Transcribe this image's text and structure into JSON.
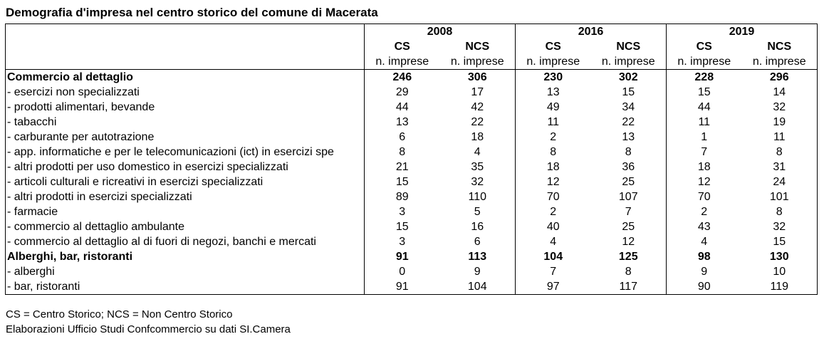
{
  "title": "Demografia d'impresa nel centro storico del comune di Macerata",
  "table": {
    "years": [
      "2008",
      "2016",
      "2019"
    ],
    "groups": [
      "CS",
      "NCS",
      "CS",
      "NCS",
      "CS",
      "NCS"
    ],
    "units": [
      "n. imprese",
      "n. imprese",
      "n. imprese",
      "n. imprese",
      "n. imprese",
      "n. imprese"
    ],
    "rows": [
      {
        "label": "Commercio al dettaglio",
        "bold": true,
        "values": [
          "246",
          "306",
          "230",
          "302",
          "228",
          "296"
        ]
      },
      {
        "label": "- esercizi non specializzati",
        "values": [
          "29",
          "17",
          "13",
          "15",
          "15",
          "14"
        ]
      },
      {
        "label": "- prodotti alimentari, bevande",
        "values": [
          "44",
          "42",
          "49",
          "34",
          "44",
          "32"
        ]
      },
      {
        "label": "- tabacchi",
        "values": [
          "13",
          "22",
          "11",
          "22",
          "11",
          "19"
        ]
      },
      {
        "label": "- carburante per autotrazione",
        "values": [
          "6",
          "18",
          "2",
          "13",
          "1",
          "11"
        ]
      },
      {
        "label": "- app. informatiche e per le telecomunicazioni (ict) in esercizi spe",
        "values": [
          "8",
          "4",
          "8",
          "8",
          "7",
          "8"
        ]
      },
      {
        "label": "- altri prodotti per uso domestico in esercizi specializzati",
        "values": [
          "21",
          "35",
          "18",
          "36",
          "18",
          "31"
        ]
      },
      {
        "label": "- articoli culturali e ricreativi in esercizi specializzati",
        "values": [
          "15",
          "32",
          "12",
          "25",
          "12",
          "24"
        ]
      },
      {
        "label": "- altri prodotti in esercizi specializzati",
        "values": [
          "89",
          "110",
          "70",
          "107",
          "70",
          "101"
        ]
      },
      {
        "label": "- farmacie",
        "values": [
          "3",
          "5",
          "2",
          "7",
          "2",
          "8"
        ]
      },
      {
        "label": "- commercio al dettaglio ambulante",
        "values": [
          "15",
          "16",
          "40",
          "25",
          "43",
          "32"
        ]
      },
      {
        "label": "- commercio al dettaglio al di fuori di negozi, banchi e mercati",
        "values": [
          "3",
          "6",
          "4",
          "12",
          "4",
          "15"
        ]
      },
      {
        "label": "Alberghi, bar, ristoranti",
        "bold": true,
        "values": [
          "91",
          "113",
          "104",
          "125",
          "98",
          "130"
        ]
      },
      {
        "label": "- alberghi",
        "values": [
          "0",
          "9",
          "7",
          "8",
          "9",
          "10"
        ]
      },
      {
        "label": "- bar, ristoranti",
        "values": [
          "91",
          "104",
          "97",
          "117",
          "90",
          "119"
        ]
      }
    ]
  },
  "footnotes": [
    "CS = Centro Storico; NCS = Non Centro Storico",
    "Elaborazioni Ufficio Studi Confcommercio su dati SI.Camera"
  ]
}
